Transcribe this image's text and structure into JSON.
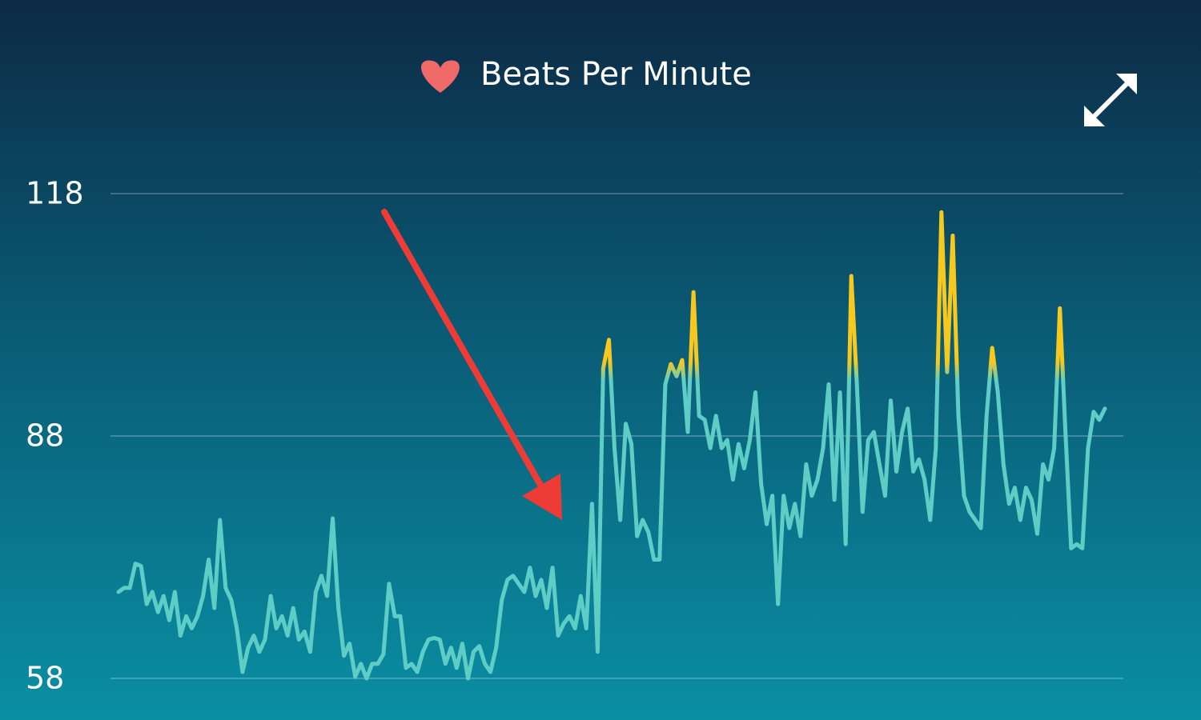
{
  "chart_data": {
    "type": "line",
    "title": "Beats Per Minute",
    "ylim": [
      58,
      118
    ],
    "yticks": [
      58,
      88,
      118
    ],
    "grid": true,
    "color": "#5ecdc6",
    "zone": {
      "above": 96,
      "color": "#f7c81e"
    },
    "values": [
      68.7,
      69.2,
      69.2,
      72.2,
      71.9,
      67.2,
      68.7,
      66.2,
      68.2,
      65.2,
      68.7,
      63.3,
      65.7,
      64.2,
      65.7,
      68.2,
      72.7,
      66.7,
      77.6,
      69.2,
      67.7,
      64.2,
      58.8,
      61.8,
      63.3,
      61.3,
      62.8,
      68.2,
      64.2,
      65.7,
      63.3,
      66.7,
      62.8,
      63.8,
      61.3,
      68.7,
      70.7,
      68.2,
      77.8,
      66.7,
      60.8,
      62.3,
      58.2,
      59.8,
      58.0,
      59.8,
      59.8,
      61.0,
      69.7,
      65.7,
      65.7,
      59.3,
      59.8,
      58.8,
      61.3,
      62.8,
      63.0,
      62.8,
      59.8,
      61.8,
      59.3,
      62.3,
      58.0,
      61.3,
      62.0,
      59.8,
      58.8,
      61.8,
      67.7,
      70.2,
      70.7,
      69.7,
      68.7,
      71.7,
      68.2,
      70.2,
      66.7,
      71.7,
      63.3,
      64.8,
      65.7,
      64.2,
      68.2,
      64.2,
      79.6,
      61.3,
      96.4,
      99.9,
      86.5,
      77.6,
      89.5,
      87.0,
      75.6,
      77.6,
      76.1,
      72.7,
      72.7,
      94.4,
      96.9,
      95.4,
      97.4,
      88.5,
      105.8,
      90.5,
      90.0,
      86.5,
      90.5,
      86.5,
      87.5,
      82.6,
      87.0,
      84.0,
      87.5,
      93.4,
      82.1,
      77.1,
      80.6,
      67.2,
      80.6,
      76.6,
      79.6,
      75.6,
      84.5,
      80.6,
      82.6,
      86.5,
      94.4,
      80.1,
      93.4,
      74.6,
      107.8,
      94.4,
      78.6,
      87.5,
      88.5,
      84.5,
      80.6,
      92.4,
      83.6,
      88.5,
      91.4,
      83.6,
      85.1,
      82.6,
      77.6,
      86.5,
      115.7,
      95.9,
      112.8,
      90.5,
      80.6,
      78.6,
      77.6,
      76.6,
      90.5,
      98.9,
      93.4,
      84.5,
      79.6,
      81.6,
      77.6,
      81.6,
      80.1,
      75.9,
      84.5,
      82.6,
      86.5,
      103.8,
      88.5,
      74.1,
      74.6,
      74.1,
      86.5,
      91.0,
      90.0,
      91.4
    ]
  }
}
